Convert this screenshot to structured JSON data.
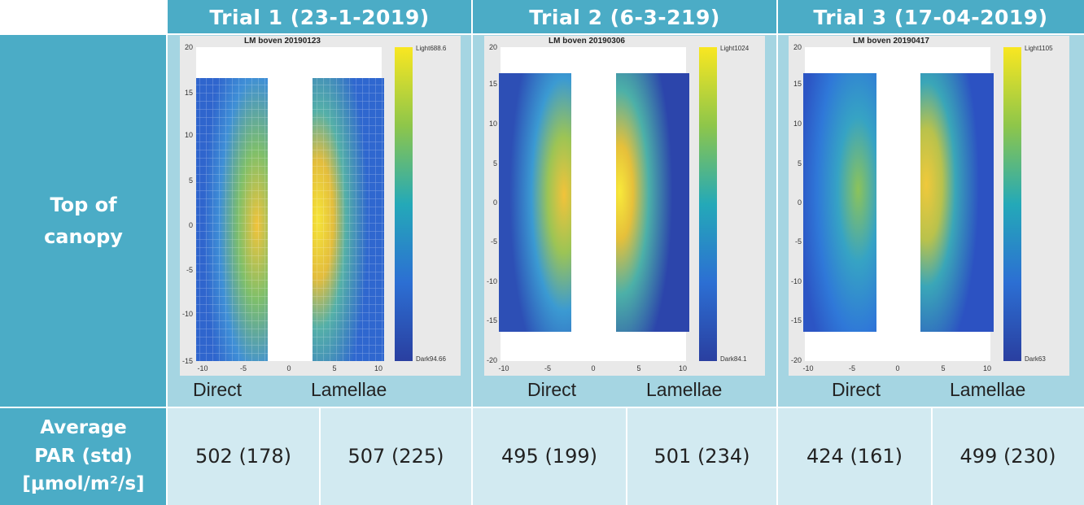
{
  "header": {
    "trials": [
      {
        "title": "Trial 1 (23-1-2019)",
        "plot_title": "LM boven 20190123",
        "cbar_top": "Light688.6",
        "cbar_bottom": "Dark94.66"
      },
      {
        "title": "Trial 2 (6-3-219)",
        "plot_title": "LM boven 20190306",
        "cbar_top": "Light1024",
        "cbar_bottom": "Dark84.1"
      },
      {
        "title": "Trial 3 (17-04-2019)",
        "plot_title": "LM boven 20190417",
        "cbar_top": "Light1105",
        "cbar_bottom": "Dark63"
      }
    ]
  },
  "rows": {
    "top_label_line1": "Top of",
    "top_label_line2": "canopy",
    "avg_label_line1": "Average",
    "avg_label_line2": "PAR (std)",
    "avg_label_line3": "[μmol/m²/s]"
  },
  "labels": {
    "direct": "Direct",
    "lamellae": "Lamellae"
  },
  "axis": {
    "y_ticks": [
      "20",
      "15",
      "10",
      "5",
      "0",
      "-5",
      "-10",
      "-15",
      "-20"
    ],
    "x_ticks": [
      "-10",
      "-5",
      "0",
      "5",
      "10"
    ]
  },
  "values": [
    [
      "502 (178)",
      "507 (225)"
    ],
    [
      "495 (199)",
      "501 (234)"
    ],
    [
      "424 (161)",
      "499 (230)"
    ]
  ],
  "colors": {
    "header": "#4bacc6",
    "image_bg": "#a5d5e2",
    "data_bg": "#d2eaf1"
  }
}
